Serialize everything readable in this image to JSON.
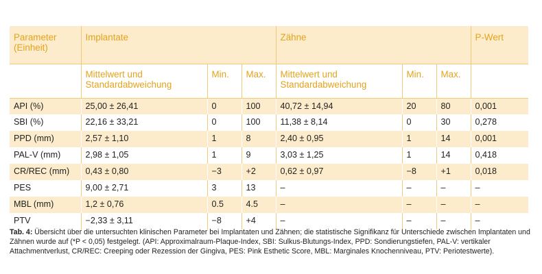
{
  "table": {
    "header1": {
      "parameter": "Parameter (Einheit)",
      "implantate": "Implantate",
      "zaehne": "Zähne",
      "pwert": "P-Wert"
    },
    "header2": {
      "mw_impl": "Mittelwert und Standardabweichung",
      "min_impl": "Min.",
      "max_impl": "Max.",
      "mw_zahn": "Mittelwert und Standardabweichung",
      "min_zahn": "Min.",
      "max_zahn": "Max."
    },
    "rows": [
      {
        "param": "API (%)",
        "mw_impl": "25,00 ± 26,41",
        "min_impl": "0",
        "max_impl": "100",
        "mw_zahn": "40,72 ± 14,94",
        "min_zahn": "20",
        "max_zahn": "80",
        "p": "0,001"
      },
      {
        "param": "SBI (%)",
        "mw_impl": "22,16 ± 33,21",
        "min_impl": "0",
        "max_impl": "100",
        "mw_zahn": "11,38 ± 8,14",
        "min_zahn": "0",
        "max_zahn": "30",
        "p": "0,278"
      },
      {
        "param": "PPD (mm)",
        "mw_impl": "2,57 ± 1,10",
        "min_impl": "1",
        "max_impl": "8",
        "mw_zahn": "2,40 ± 0,95",
        "min_zahn": "1",
        "max_zahn": "14",
        "p": "0,001"
      },
      {
        "param": "PAL-V (mm)",
        "mw_impl": "2,98 ± 1,05",
        "min_impl": "1",
        "max_impl": "9",
        "mw_zahn": "3,03 ± 1,25",
        "min_zahn": "1",
        "max_zahn": "14",
        "p": "0,418"
      },
      {
        "param": "CR/REC (mm)",
        "mw_impl": "0,43 ± 0,80",
        "min_impl": "−3",
        "max_impl": "+2",
        "mw_zahn": "0,62 ± 0,97",
        "min_zahn": "−8",
        "max_zahn": "+1",
        "p": "0,018"
      },
      {
        "param": "PES",
        "mw_impl": "9,00 ± 2,71",
        "min_impl": "3",
        "max_impl": "13",
        "mw_zahn": "–",
        "min_zahn": "–",
        "max_zahn": "–",
        "p": "–"
      },
      {
        "param": "MBL (mm)",
        "mw_impl": "1,2 ± 0,76",
        "min_impl": "0.5",
        "max_impl": "4.5",
        "mw_zahn": "–",
        "min_zahn": "–",
        "max_zahn": "–",
        "p": "–"
      },
      {
        "param": "PTV",
        "mw_impl": "−2,33 ± 3,11",
        "min_impl": "−8",
        "max_impl": "+4",
        "mw_zahn": "–",
        "min_zahn": "–",
        "max_zahn": "–",
        "p": "–"
      }
    ]
  },
  "caption": {
    "label": "Tab. 4:",
    "text": " Übersicht über die untersuchten klinischen Parameter bei Implantaten und Zähnen; die statistische Signifikanz für Unterschiede zwischen Implantaten und Zähnen wurde auf (*P < 0,05) festgelegt. (API: Approximalraum-Plaque-Index, SBI: Sulkus-Blutungs-Index, PPD: Sondierungstiefen, PAL-V: vertikaler Attachmentverlust, CR/REC: Creeping oder Rezession der Gingiva, PES: Pink Esthetic Score, MBL: Marginales Knochenniveau, PTV: Periotestwerte)."
  }
}
